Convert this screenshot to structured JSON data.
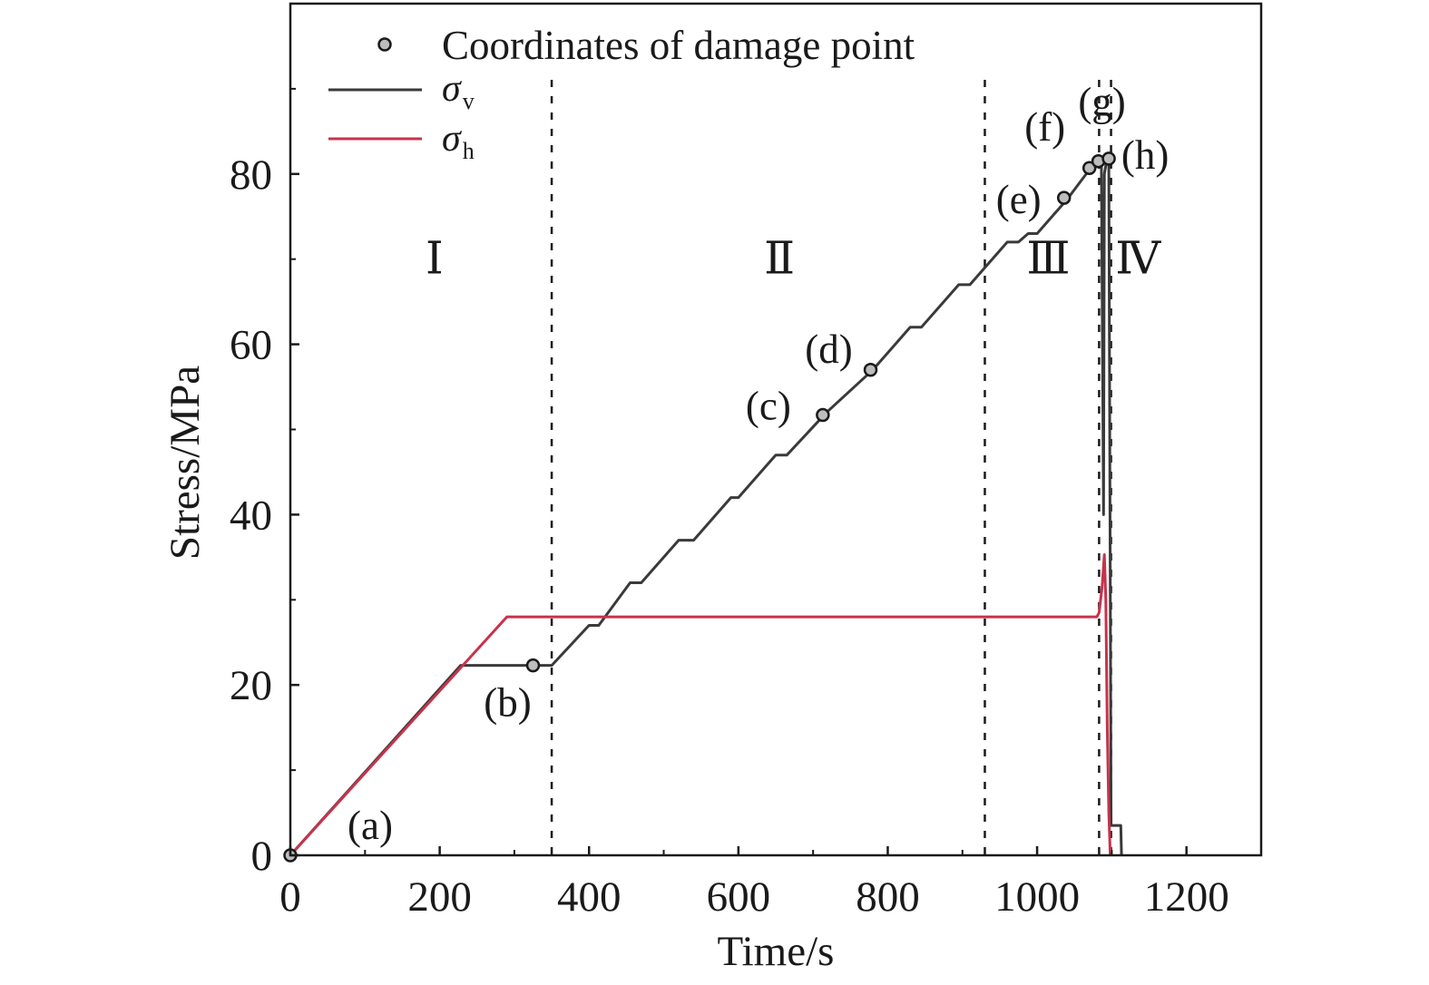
{
  "chart_data": {
    "type": "line",
    "xlabel": "Time/s",
    "ylabel": "Stress/MPa",
    "xlim": [
      0,
      1300
    ],
    "ylim": [
      0,
      100
    ],
    "x_ticks": [
      0,
      200,
      400,
      600,
      800,
      1000,
      1200
    ],
    "y_ticks": [
      0,
      20,
      40,
      60,
      80
    ],
    "legend_position": "top-left",
    "legend": {
      "damage": "Coordinates of damage point",
      "series": [
        {
          "symbol": "σ",
          "sub": "v",
          "color": "#3a3a3a"
        },
        {
          "symbol": "σ",
          "sub": "h",
          "color": "#c8324b"
        }
      ]
    },
    "series": [
      {
        "name": "σv",
        "color": "#3a3a3a",
        "points": [
          [
            0,
            0
          ],
          [
            228,
            22.3
          ],
          [
            350,
            22.3
          ],
          [
            400,
            27
          ],
          [
            413,
            27
          ],
          [
            455,
            32
          ],
          [
            470,
            32
          ],
          [
            520,
            37
          ],
          [
            540,
            37
          ],
          [
            590,
            42
          ],
          [
            600,
            42
          ],
          [
            650,
            47
          ],
          [
            665,
            47
          ],
          [
            718,
            52
          ],
          [
            780,
            57
          ],
          [
            830,
            62
          ],
          [
            845,
            62
          ],
          [
            895,
            67
          ],
          [
            910,
            67
          ],
          [
            960,
            72
          ],
          [
            975,
            72
          ],
          [
            988,
            73
          ],
          [
            1000,
            73
          ],
          [
            1020,
            75
          ],
          [
            1040,
            77
          ],
          [
            1070,
            80.5
          ],
          [
            1080,
            81.5
          ],
          [
            1086,
            81.5
          ],
          [
            1089,
            40
          ],
          [
            1090,
            80
          ],
          [
            1092,
            81
          ],
          [
            1094,
            81.5
          ],
          [
            1096,
            81
          ],
          [
            1099,
            3.5
          ],
          [
            1112,
            3.5
          ],
          [
            1113,
            0
          ]
        ]
      },
      {
        "name": "σh",
        "color": "#c8324b",
        "points": [
          [
            0,
            0
          ],
          [
            290,
            28
          ],
          [
            1080,
            28
          ],
          [
            1083,
            28.5
          ],
          [
            1087,
            31.5
          ],
          [
            1090,
            35.3
          ],
          [
            1092,
            30
          ],
          [
            1094,
            15
          ],
          [
            1096,
            5
          ],
          [
            1098,
            0
          ]
        ]
      }
    ],
    "damage_points": [
      {
        "label": "(a)",
        "x": 0,
        "y": 0
      },
      {
        "label": "(b)",
        "x": 325,
        "y": 22.3
      },
      {
        "label": "(c)",
        "x": 713,
        "y": 51.7
      },
      {
        "label": "(d)",
        "x": 777,
        "y": 57
      },
      {
        "label": "(e)",
        "x": 1036,
        "y": 77.2
      },
      {
        "label": "(f)",
        "x": 1070,
        "y": 80.7
      },
      {
        "label": "(g)",
        "x": 1082,
        "y": 81.5
      },
      {
        "label": "(h)",
        "x": 1096,
        "y": 81.8
      }
    ],
    "stage_boundaries": [
      350,
      930,
      1083,
      1099
    ],
    "stages": [
      {
        "label": "Ⅰ",
        "x": 193,
        "y": 70
      },
      {
        "label": "Ⅱ",
        "x": 655,
        "y": 70
      },
      {
        "label": "Ⅲ",
        "x": 1015,
        "y": 70
      },
      {
        "label": "Ⅳ",
        "x": 1135,
        "y": 70
      }
    ]
  }
}
